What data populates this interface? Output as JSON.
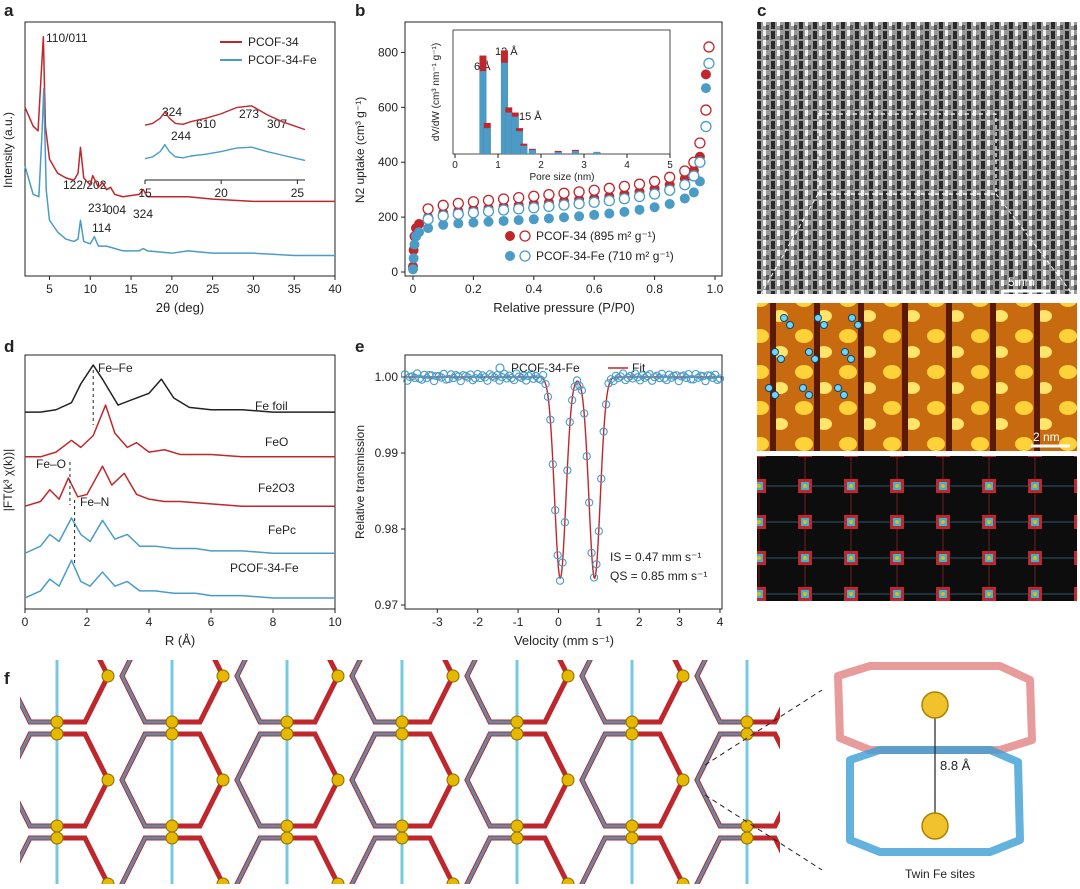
{
  "colors": {
    "red": "#c0272d",
    "blue": "#4a9cc7",
    "black": "#222222",
    "darkred": "#a52a2a",
    "cyan": "#3ab4d6",
    "gold": "#e6b800"
  },
  "panel_labels": {
    "a": "a",
    "b": "b",
    "c": "c",
    "d": "d",
    "e": "e",
    "f": "f"
  },
  "chart_data": [
    {
      "id": "a",
      "type": "line",
      "xlabel": "2θ (deg)",
      "ylabel": "Intensity (a.u.)",
      "xlim": [
        2,
        40
      ],
      "xticks": [
        5,
        10,
        15,
        20,
        25,
        30,
        35,
        40
      ],
      "series": [
        {
          "name": "PCOF-34",
          "color": "#c0272d",
          "x": [
            2,
            3,
            3.6,
            4.0,
            4.25,
            4.5,
            5,
            6,
            7,
            8,
            8.5,
            8.8,
            9.2,
            10,
            10.3,
            11,
            11.5,
            12,
            12.5,
            13,
            14,
            16,
            16.5,
            17,
            20,
            22,
            25,
            30,
            35,
            40
          ],
          "y": [
            0.7,
            0.62,
            0.6,
            0.85,
            1.0,
            0.62,
            0.48,
            0.42,
            0.4,
            0.39,
            0.42,
            0.53,
            0.4,
            0.37,
            0.41,
            0.36,
            0.38,
            0.35,
            0.36,
            0.33,
            0.32,
            0.33,
            0.35,
            0.32,
            0.32,
            0.32,
            0.31,
            0.3,
            0.3,
            0.3
          ]
        },
        {
          "name": "PCOF-34-Fe",
          "color": "#4a9cc7",
          "x": [
            2,
            3,
            3.7,
            4.1,
            4.3,
            4.6,
            5,
            6,
            7,
            8,
            8.5,
            8.8,
            9.2,
            10,
            10.5,
            11,
            12,
            13,
            14,
            16,
            16.5,
            17,
            20,
            22,
            25,
            30,
            35,
            40
          ],
          "y": [
            0.45,
            0.33,
            0.32,
            0.6,
            0.78,
            0.35,
            0.22,
            0.17,
            0.14,
            0.13,
            0.14,
            0.22,
            0.13,
            0.12,
            0.15,
            0.11,
            0.11,
            0.1,
            0.09,
            0.09,
            0.1,
            0.09,
            0.08,
            0.09,
            0.08,
            0.08,
            0.07,
            0.07
          ]
        }
      ],
      "annotations": [
        "110/011",
        "122/202",
        "231",
        "004",
        "114",
        "324"
      ],
      "inset": {
        "xlim": [
          15,
          25.5
        ],
        "xticks": [
          15,
          20,
          25
        ],
        "labels": [
          "324",
          "244",
          "610",
          "273",
          "307"
        ],
        "series": [
          {
            "name": "PCOF-34",
            "color": "#c0272d",
            "x": [
              15,
              15.5,
              16,
              16.3,
              16.6,
              17,
              17.5,
              18,
              19,
              20,
              21,
              22,
              23,
              24,
              25,
              25.5
            ],
            "y": [
              0.6,
              0.62,
              0.68,
              0.75,
              0.68,
              0.62,
              0.61,
              0.64,
              0.68,
              0.73,
              0.8,
              0.82,
              0.72,
              0.64,
              0.58,
              0.55
            ]
          },
          {
            "name": "PCOF-34-Fe",
            "color": "#4a9cc7",
            "x": [
              15,
              15.5,
              16,
              16.3,
              16.6,
              17,
              17.5,
              18,
              19,
              20,
              21,
              22,
              23,
              24,
              25,
              25.5
            ],
            "y": [
              0.22,
              0.24,
              0.3,
              0.38,
              0.3,
              0.24,
              0.23,
              0.25,
              0.27,
              0.3,
              0.34,
              0.35,
              0.3,
              0.26,
              0.22,
              0.2
            ]
          }
        ]
      }
    },
    {
      "id": "b",
      "type": "scatter",
      "xlabel": "Relative pressure (P/P0)",
      "ylabel": "N2 uptake (cm³ g⁻¹)",
      "xlim": [
        0,
        1
      ],
      "ylim": [
        0,
        900
      ],
      "xticks": [
        0,
        0.2,
        0.4,
        0.6,
        0.8,
        1.0
      ],
      "yticks": [
        0,
        200,
        400,
        600,
        800
      ],
      "series": [
        {
          "name": "PCOF-34 (895 m² g⁻¹)",
          "color": "#c0272d",
          "ads_x": [
            0.0,
            0.002,
            0.005,
            0.01,
            0.02,
            0.05,
            0.1,
            0.15,
            0.2,
            0.25,
            0.3,
            0.35,
            0.4,
            0.45,
            0.5,
            0.55,
            0.6,
            0.65,
            0.7,
            0.75,
            0.8,
            0.85,
            0.9,
            0.93,
            0.95,
            0.97
          ],
          "ads_y": [
            20,
            80,
            130,
            160,
            175,
            200,
            215,
            222,
            228,
            232,
            238,
            243,
            248,
            253,
            258,
            263,
            268,
            275,
            283,
            292,
            303,
            318,
            340,
            370,
            420,
            720
          ],
          "des_x": [
            0.98,
            0.97,
            0.95,
            0.93,
            0.9,
            0.85,
            0.8,
            0.75,
            0.7,
            0.65,
            0.6,
            0.55,
            0.5,
            0.45,
            0.4,
            0.35,
            0.3,
            0.25,
            0.2,
            0.15,
            0.1,
            0.05
          ],
          "des_y": [
            820,
            590,
            470,
            400,
            368,
            345,
            330,
            320,
            312,
            305,
            298,
            292,
            287,
            282,
            276,
            271,
            266,
            261,
            256,
            250,
            243,
            230
          ]
        },
        {
          "name": "PCOF-34-Fe (710 m² g⁻¹)",
          "color": "#4a9cc7",
          "ads_x": [
            0.0,
            0.002,
            0.005,
            0.01,
            0.02,
            0.05,
            0.1,
            0.15,
            0.2,
            0.25,
            0.3,
            0.35,
            0.4,
            0.45,
            0.5,
            0.55,
            0.6,
            0.65,
            0.7,
            0.75,
            0.8,
            0.85,
            0.9,
            0.93,
            0.95,
            0.97
          ],
          "ads_y": [
            10,
            50,
            100,
            130,
            145,
            160,
            172,
            177,
            180,
            183,
            186,
            189,
            192,
            195,
            199,
            203,
            208,
            213,
            219,
            227,
            236,
            248,
            268,
            290,
            330,
            670
          ],
          "des_x": [
            0.98,
            0.97,
            0.95,
            0.93,
            0.9,
            0.85,
            0.8,
            0.75,
            0.7,
            0.65,
            0.6,
            0.55,
            0.5,
            0.45,
            0.4,
            0.35,
            0.3,
            0.25,
            0.2,
            0.15,
            0.1,
            0.05
          ],
          "des_y": [
            760,
            530,
            400,
            350,
            318,
            298,
            284,
            275,
            267,
            260,
            254,
            249,
            244,
            239,
            234,
            230,
            226,
            221,
            216,
            211,
            204,
            192
          ]
        }
      ],
      "inset": {
        "xlabel": "Pore size (nm)",
        "ylabel": "dV/dW (cm³ nm⁻¹ g⁻¹)",
        "xlim": [
          0,
          5
        ],
        "xticks": [
          0,
          1,
          2,
          3,
          4,
          5
        ],
        "labels": [
          "6 Å",
          "12 Å",
          "15 Å"
        ],
        "bars": [
          {
            "x": 0.65,
            "red": 0.95,
            "blue": 0.8
          },
          {
            "x": 0.75,
            "red": 0.3,
            "blue": 0.25
          },
          {
            "x": 1.15,
            "red": 1.0,
            "blue": 0.88
          },
          {
            "x": 1.25,
            "red": 0.45,
            "blue": 0.4
          },
          {
            "x": 1.4,
            "red": 0.4,
            "blue": 0.36
          },
          {
            "x": 1.5,
            "red": 0.25,
            "blue": 0.22
          },
          {
            "x": 1.6,
            "red": 0.1,
            "blue": 0.08
          },
          {
            "x": 1.8,
            "red": 0.05,
            "blue": 0.04
          },
          {
            "x": 2.4,
            "red": 0.03,
            "blue": 0.02
          },
          {
            "x": 2.8,
            "red": 0.04,
            "blue": 0.03
          },
          {
            "x": 3.3,
            "red": 0.02,
            "blue": 0.02
          }
        ]
      }
    },
    {
      "id": "d",
      "type": "line",
      "xlabel": "R (Å)",
      "ylabel": "|FT(k³ χ(k))|",
      "xlim": [
        0,
        10
      ],
      "xticks": [
        0,
        2,
        4,
        6,
        8,
        10
      ],
      "labels": [
        "Fe foil",
        "FeO",
        "Fe2O3",
        "FePc",
        "PCOF-34-Fe"
      ],
      "annotations": [
        "Fe–Fe",
        "Fe–O",
        "Fe–N"
      ],
      "series": [
        {
          "name": "Fe foil",
          "color": "#222222",
          "offset": 0.82,
          "x": [
            0,
            0.5,
            1,
            1.5,
            1.8,
            2.2,
            2.5,
            3,
            3.4,
            4,
            4.4,
            4.8,
            5.3,
            6,
            7,
            8,
            9,
            10
          ],
          "y": [
            0,
            0,
            0.01,
            0.04,
            0.12,
            0.2,
            0.14,
            0.03,
            0.05,
            0.08,
            0.14,
            0.06,
            0.02,
            0.01,
            0.01,
            0,
            0,
            0
          ]
        },
        {
          "name": "FeO",
          "color": "#c0272d",
          "offset": 0.63,
          "x": [
            0,
            0.5,
            1,
            1.5,
            1.8,
            2.2,
            2.6,
            2.9,
            3.3,
            3.6,
            4,
            4.5,
            5,
            6,
            7,
            8,
            9,
            10
          ],
          "y": [
            0,
            0,
            0.02,
            0.07,
            0.04,
            0.09,
            0.22,
            0.1,
            0.04,
            0.06,
            0.02,
            0.03,
            0.01,
            0.01,
            0,
            0,
            0,
            0
          ]
        },
        {
          "name": "Fe2O3",
          "color": "#c0272d",
          "offset": 0.42,
          "x": [
            0,
            0.5,
            0.8,
            1.1,
            1.4,
            1.7,
            2.0,
            2.5,
            2.8,
            3.2,
            3.6,
            4,
            4.5,
            5,
            6,
            7,
            8,
            9,
            10
          ],
          "y": [
            0,
            0.02,
            0.07,
            0.03,
            0.12,
            0.04,
            0.05,
            0.17,
            0.09,
            0.14,
            0.05,
            0.03,
            0.02,
            0.02,
            0.01,
            0,
            0,
            0,
            0
          ]
        },
        {
          "name": "FePc",
          "color": "#4a9cc7",
          "offset": 0.22,
          "x": [
            0,
            0.5,
            0.8,
            1.1,
            1.5,
            1.8,
            2.1,
            2.5,
            2.9,
            3.3,
            3.7,
            4.2,
            4.8,
            5.5,
            6,
            7,
            8,
            9,
            10
          ],
          "y": [
            0,
            0.03,
            0.08,
            0.05,
            0.15,
            0.08,
            0.05,
            0.14,
            0.06,
            0.08,
            0.03,
            0.03,
            0.02,
            0.02,
            0.01,
            0.01,
            0,
            0,
            0
          ]
        },
        {
          "name": "PCOF-34-Fe",
          "color": "#4a9cc7",
          "offset": 0.03,
          "x": [
            0,
            0.5,
            0.8,
            1.1,
            1.5,
            1.8,
            2.1,
            2.5,
            2.9,
            3.3,
            3.7,
            4.2,
            4.8,
            5.5,
            6,
            7,
            8,
            9,
            10
          ],
          "y": [
            0,
            0.03,
            0.08,
            0.05,
            0.16,
            0.07,
            0.05,
            0.11,
            0.05,
            0.07,
            0.03,
            0.03,
            0.02,
            0.02,
            0.01,
            0.01,
            0,
            0,
            0
          ]
        }
      ]
    },
    {
      "id": "e",
      "type": "scatter",
      "xlabel": "Velocity (mm s⁻¹)",
      "ylabel": "Relative transmission",
      "xlim": [
        -3.8,
        4.05
      ],
      "ylim": [
        0.97,
        1.0025
      ],
      "xticks": [
        -3,
        -2,
        -1,
        0,
        1,
        2,
        3,
        4
      ],
      "yticks": [
        0.97,
        0.98,
        0.99,
        1.0
      ],
      "legend": [
        "PCOF-34-Fe",
        "Fit"
      ],
      "fit": {
        "IS": 0.47,
        "QS": 0.85,
        "center1": 0.045,
        "center2": 0.895,
        "depth": 0.0265,
        "width": 0.14
      },
      "annotations": [
        "IS = 0.47 mm s⁻¹",
        "QS = 0.85 mm s⁻¹"
      ]
    }
  ],
  "panel_c": {
    "scalebar_top": "5 nm",
    "scalebar_mid": "2 nm"
  },
  "panel_f": {
    "distance_label": "8.8 Å",
    "caption": "Twin Fe sites"
  }
}
